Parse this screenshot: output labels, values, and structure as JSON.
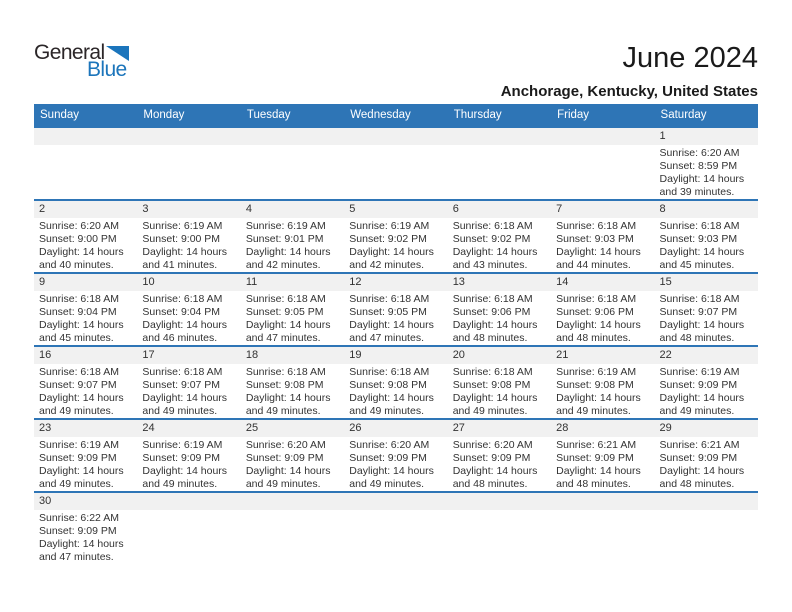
{
  "logo": {
    "text_dark": "General",
    "text_blue": "Blue",
    "triangle_color": "#1B75BC"
  },
  "header": {
    "month_title": "June 2024",
    "location": "Anchorage, Kentucky, United States"
  },
  "colors": {
    "header_bar": "#2E75B6",
    "row_divider": "#2E75B6",
    "day_strip_bg": "#F1F1F1",
    "weekday_text": "#FFFFFF",
    "body_text": "#333333"
  },
  "weekdays": [
    "Sunday",
    "Monday",
    "Tuesday",
    "Wednesday",
    "Thursday",
    "Friday",
    "Saturday"
  ],
  "weeks": [
    {
      "cells": [
        null,
        null,
        null,
        null,
        null,
        null,
        {
          "day": "1",
          "sunrise": "Sunrise: 6:20 AM",
          "sunset": "Sunset: 8:59 PM",
          "daylight1": "Daylight: 14 hours",
          "daylight2": "and 39 minutes."
        }
      ]
    },
    {
      "cells": [
        {
          "day": "2",
          "sunrise": "Sunrise: 6:20 AM",
          "sunset": "Sunset: 9:00 PM",
          "daylight1": "Daylight: 14 hours",
          "daylight2": "and 40 minutes."
        },
        {
          "day": "3",
          "sunrise": "Sunrise: 6:19 AM",
          "sunset": "Sunset: 9:00 PM",
          "daylight1": "Daylight: 14 hours",
          "daylight2": "and 41 minutes."
        },
        {
          "day": "4",
          "sunrise": "Sunrise: 6:19 AM",
          "sunset": "Sunset: 9:01 PM",
          "daylight1": "Daylight: 14 hours",
          "daylight2": "and 42 minutes."
        },
        {
          "day": "5",
          "sunrise": "Sunrise: 6:19 AM",
          "sunset": "Sunset: 9:02 PM",
          "daylight1": "Daylight: 14 hours",
          "daylight2": "and 42 minutes."
        },
        {
          "day": "6",
          "sunrise": "Sunrise: 6:18 AM",
          "sunset": "Sunset: 9:02 PM",
          "daylight1": "Daylight: 14 hours",
          "daylight2": "and 43 minutes."
        },
        {
          "day": "7",
          "sunrise": "Sunrise: 6:18 AM",
          "sunset": "Sunset: 9:03 PM",
          "daylight1": "Daylight: 14 hours",
          "daylight2": "and 44 minutes."
        },
        {
          "day": "8",
          "sunrise": "Sunrise: 6:18 AM",
          "sunset": "Sunset: 9:03 PM",
          "daylight1": "Daylight: 14 hours",
          "daylight2": "and 45 minutes."
        }
      ]
    },
    {
      "cells": [
        {
          "day": "9",
          "sunrise": "Sunrise: 6:18 AM",
          "sunset": "Sunset: 9:04 PM",
          "daylight1": "Daylight: 14 hours",
          "daylight2": "and 45 minutes."
        },
        {
          "day": "10",
          "sunrise": "Sunrise: 6:18 AM",
          "sunset": "Sunset: 9:04 PM",
          "daylight1": "Daylight: 14 hours",
          "daylight2": "and 46 minutes."
        },
        {
          "day": "11",
          "sunrise": "Sunrise: 6:18 AM",
          "sunset": "Sunset: 9:05 PM",
          "daylight1": "Daylight: 14 hours",
          "daylight2": "and 47 minutes."
        },
        {
          "day": "12",
          "sunrise": "Sunrise: 6:18 AM",
          "sunset": "Sunset: 9:05 PM",
          "daylight1": "Daylight: 14 hours",
          "daylight2": "and 47 minutes."
        },
        {
          "day": "13",
          "sunrise": "Sunrise: 6:18 AM",
          "sunset": "Sunset: 9:06 PM",
          "daylight1": "Daylight: 14 hours",
          "daylight2": "and 48 minutes."
        },
        {
          "day": "14",
          "sunrise": "Sunrise: 6:18 AM",
          "sunset": "Sunset: 9:06 PM",
          "daylight1": "Daylight: 14 hours",
          "daylight2": "and 48 minutes."
        },
        {
          "day": "15",
          "sunrise": "Sunrise: 6:18 AM",
          "sunset": "Sunset: 9:07 PM",
          "daylight1": "Daylight: 14 hours",
          "daylight2": "and 48 minutes."
        }
      ]
    },
    {
      "cells": [
        {
          "day": "16",
          "sunrise": "Sunrise: 6:18 AM",
          "sunset": "Sunset: 9:07 PM",
          "daylight1": "Daylight: 14 hours",
          "daylight2": "and 49 minutes."
        },
        {
          "day": "17",
          "sunrise": "Sunrise: 6:18 AM",
          "sunset": "Sunset: 9:07 PM",
          "daylight1": "Daylight: 14 hours",
          "daylight2": "and 49 minutes."
        },
        {
          "day": "18",
          "sunrise": "Sunrise: 6:18 AM",
          "sunset": "Sunset: 9:08 PM",
          "daylight1": "Daylight: 14 hours",
          "daylight2": "and 49 minutes."
        },
        {
          "day": "19",
          "sunrise": "Sunrise: 6:18 AM",
          "sunset": "Sunset: 9:08 PM",
          "daylight1": "Daylight: 14 hours",
          "daylight2": "and 49 minutes."
        },
        {
          "day": "20",
          "sunrise": "Sunrise: 6:18 AM",
          "sunset": "Sunset: 9:08 PM",
          "daylight1": "Daylight: 14 hours",
          "daylight2": "and 49 minutes."
        },
        {
          "day": "21",
          "sunrise": "Sunrise: 6:19 AM",
          "sunset": "Sunset: 9:08 PM",
          "daylight1": "Daylight: 14 hours",
          "daylight2": "and 49 minutes."
        },
        {
          "day": "22",
          "sunrise": "Sunrise: 6:19 AM",
          "sunset": "Sunset: 9:09 PM",
          "daylight1": "Daylight: 14 hours",
          "daylight2": "and 49 minutes."
        }
      ]
    },
    {
      "cells": [
        {
          "day": "23",
          "sunrise": "Sunrise: 6:19 AM",
          "sunset": "Sunset: 9:09 PM",
          "daylight1": "Daylight: 14 hours",
          "daylight2": "and 49 minutes."
        },
        {
          "day": "24",
          "sunrise": "Sunrise: 6:19 AM",
          "sunset": "Sunset: 9:09 PM",
          "daylight1": "Daylight: 14 hours",
          "daylight2": "and 49 minutes."
        },
        {
          "day": "25",
          "sunrise": "Sunrise: 6:20 AM",
          "sunset": "Sunset: 9:09 PM",
          "daylight1": "Daylight: 14 hours",
          "daylight2": "and 49 minutes."
        },
        {
          "day": "26",
          "sunrise": "Sunrise: 6:20 AM",
          "sunset": "Sunset: 9:09 PM",
          "daylight1": "Daylight: 14 hours",
          "daylight2": "and 49 minutes."
        },
        {
          "day": "27",
          "sunrise": "Sunrise: 6:20 AM",
          "sunset": "Sunset: 9:09 PM",
          "daylight1": "Daylight: 14 hours",
          "daylight2": "and 48 minutes."
        },
        {
          "day": "28",
          "sunrise": "Sunrise: 6:21 AM",
          "sunset": "Sunset: 9:09 PM",
          "daylight1": "Daylight: 14 hours",
          "daylight2": "and 48 minutes."
        },
        {
          "day": "29",
          "sunrise": "Sunrise: 6:21 AM",
          "sunset": "Sunset: 9:09 PM",
          "daylight1": "Daylight: 14 hours",
          "daylight2": "and 48 minutes."
        }
      ]
    },
    {
      "cells": [
        {
          "day": "30",
          "sunrise": "Sunrise: 6:22 AM",
          "sunset": "Sunset: 9:09 PM",
          "daylight1": "Daylight: 14 hours",
          "daylight2": "and 47 minutes."
        },
        null,
        null,
        null,
        null,
        null,
        null
      ]
    }
  ]
}
